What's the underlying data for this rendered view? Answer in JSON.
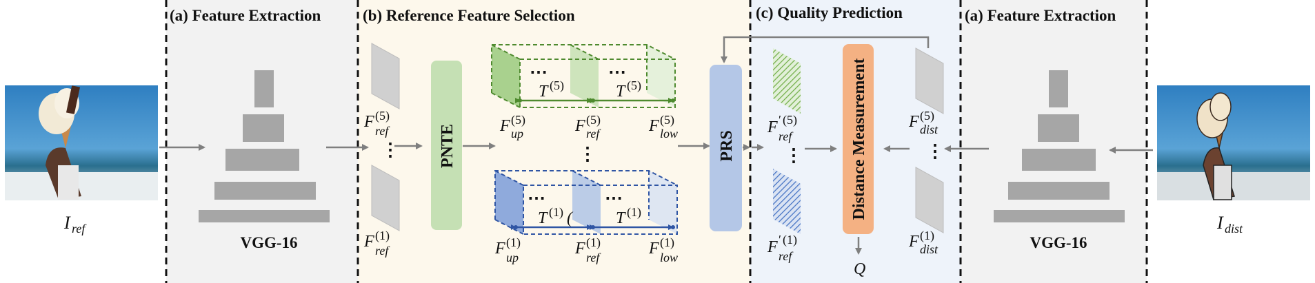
{
  "sections": {
    "feature_extraction_left": "(a) Feature Extraction",
    "reference_feature_selection": "(b) Reference Feature Selection",
    "quality_prediction": "(c) Quality Prediction",
    "feature_extraction_right": "(a) Feature Extraction"
  },
  "inputs": {
    "ref_symbol": "I",
    "ref_sub": "ref",
    "dist_symbol": "I",
    "dist_sub": "dist"
  },
  "backbone": {
    "left": "VGG-16",
    "right": "VGG-16"
  },
  "modules": {
    "pnte": "PNTE",
    "prs": "PRS",
    "distance": "Distance Measurement"
  },
  "features": {
    "f": "F",
    "ref": "ref",
    "dist": "dist",
    "up": "up",
    "low": "low",
    "T": "T",
    "level5": "(5)",
    "level1": "(1)",
    "prime": "′"
  },
  "output": {
    "q": "Q"
  },
  "ellipsis_h": "⋯",
  "ellipsis_v": "⋮",
  "colors": {
    "green_dark": "#4e8a2e",
    "green_fill": "#a9d18e",
    "blue_dark": "#2f55a4",
    "blue_fill": "#8faadc",
    "pnte": "#c5e0b4",
    "prs": "#b4c7e7",
    "distance": "#f4b183",
    "gray_block": "#a6a6a6",
    "panel_a": "#f2f2f2",
    "panel_b": "#fdf8ec",
    "panel_c": "#eef3fa"
  }
}
